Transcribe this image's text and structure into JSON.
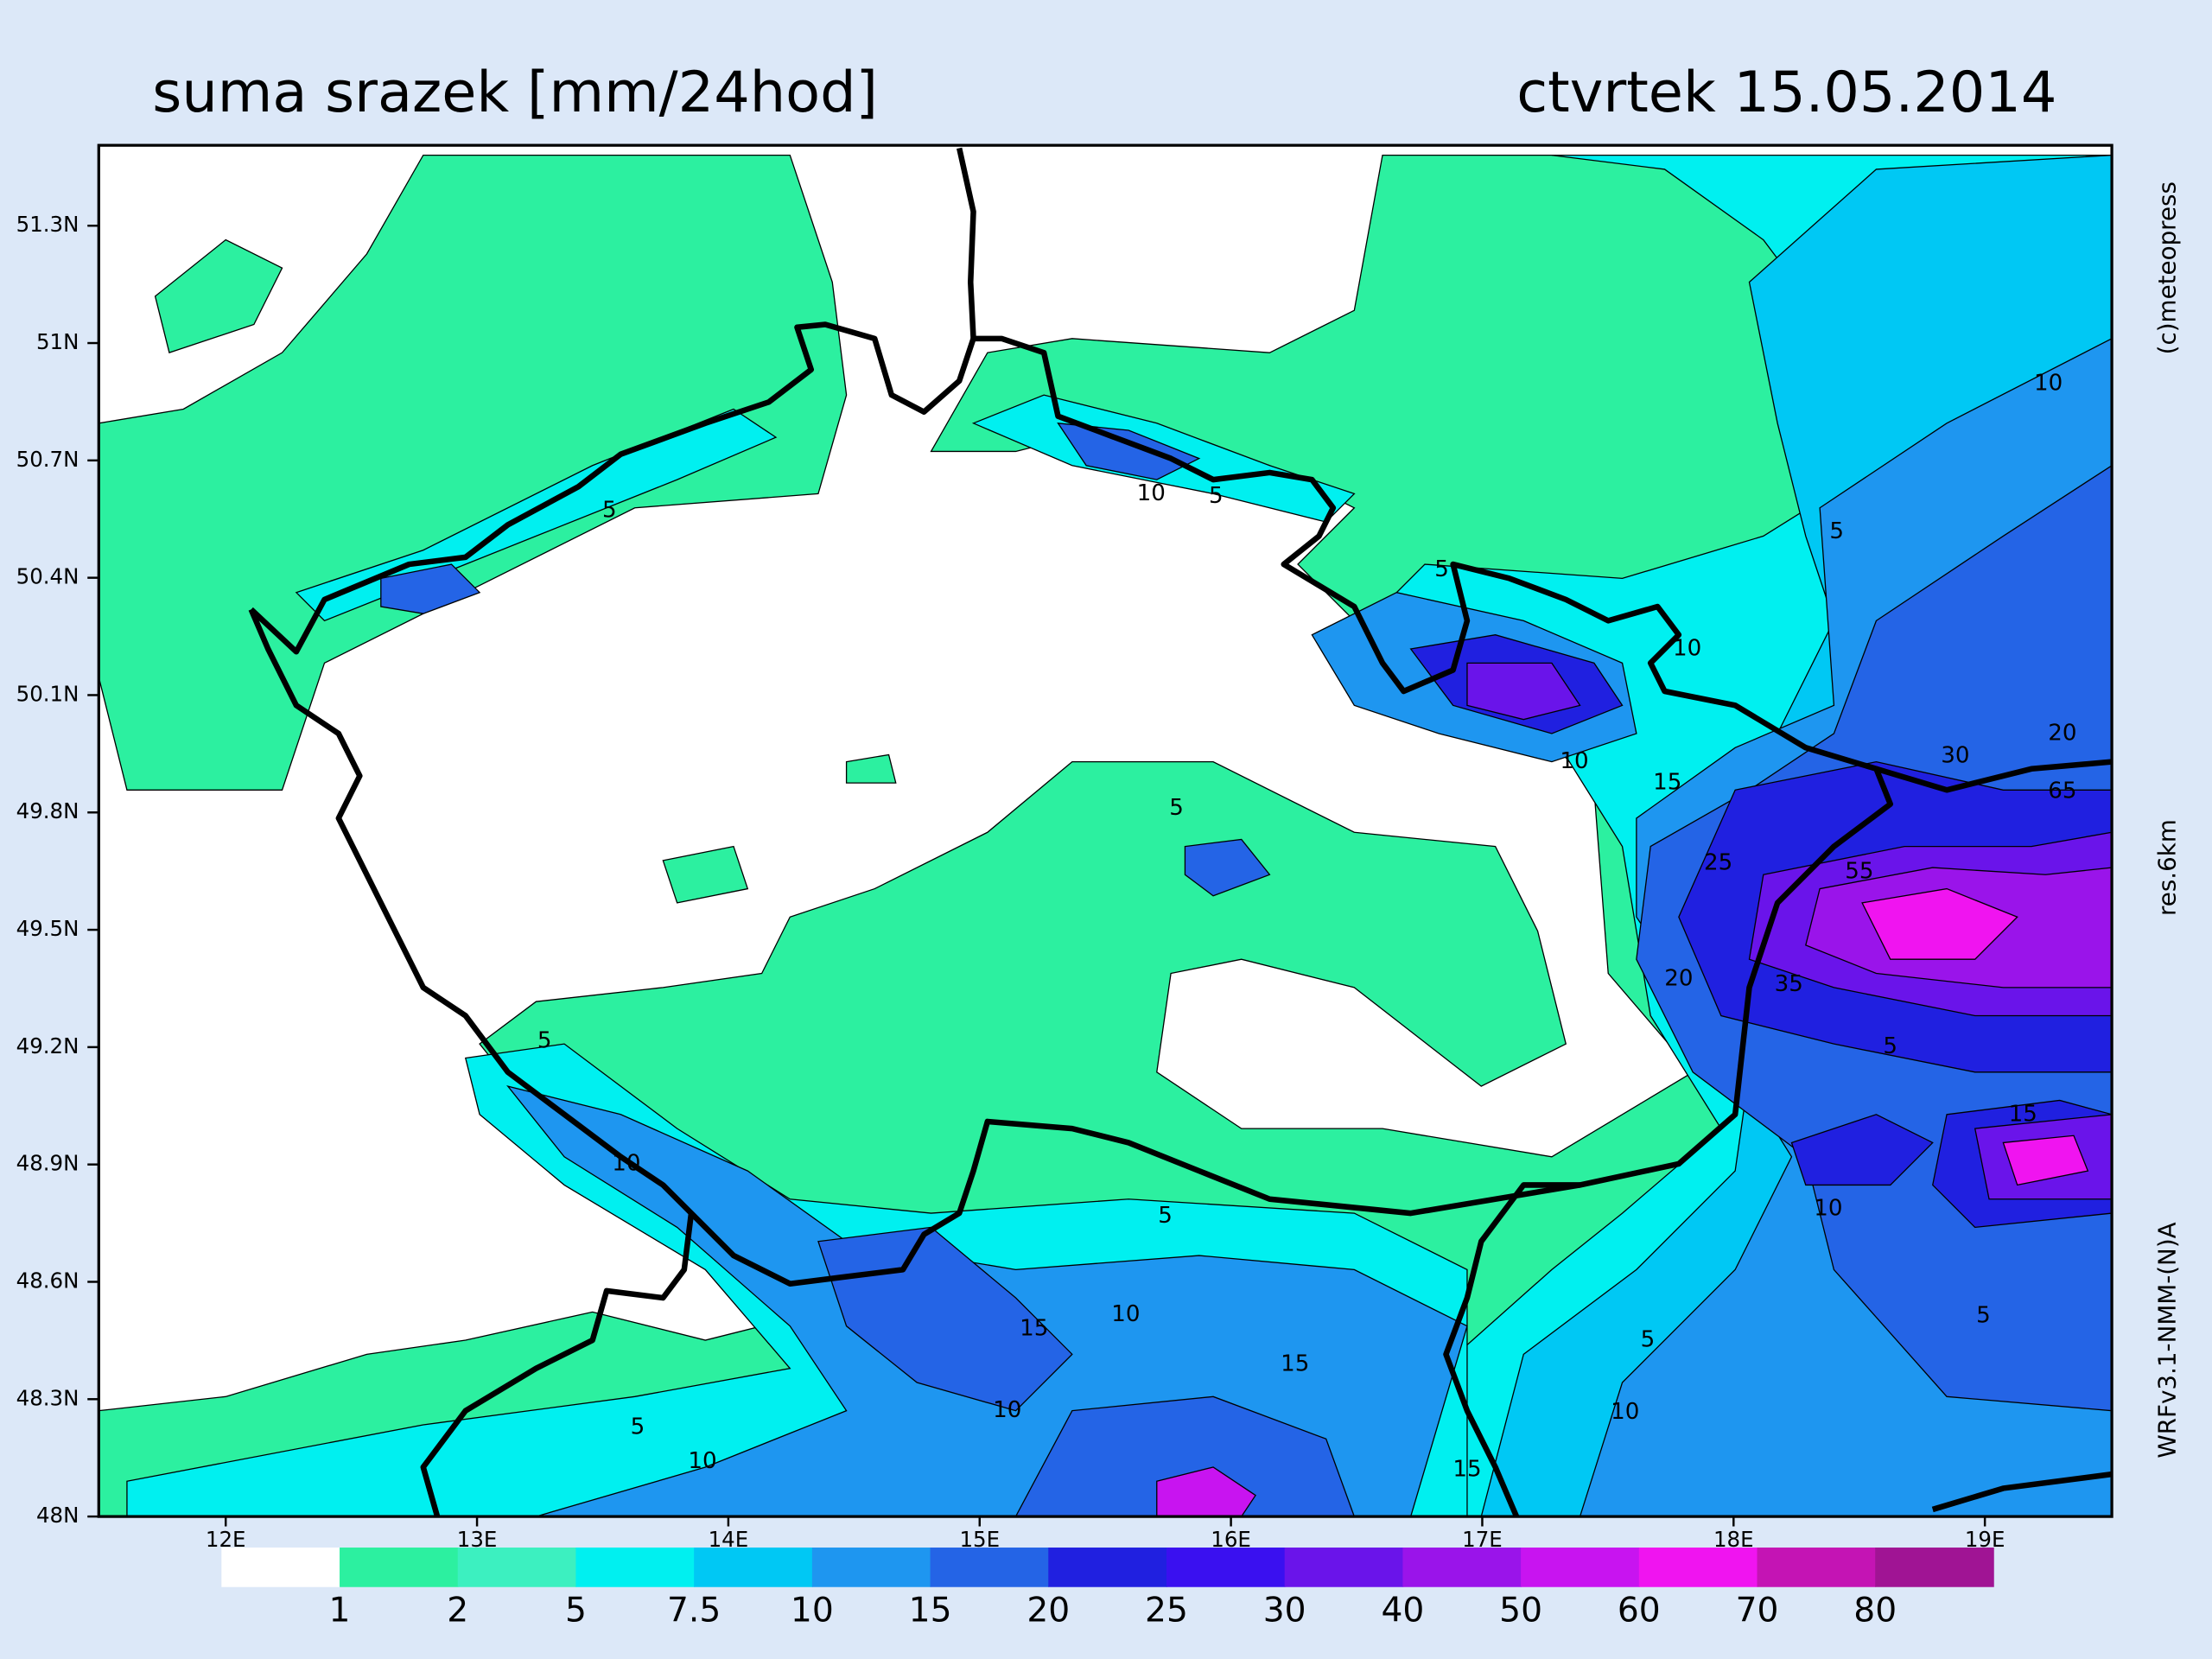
{
  "header": {
    "title": "suma srazek [mm/24hod]",
    "date": "ctvrtek 15.05.2014"
  },
  "map": {
    "lat_labels": [
      "51.3N",
      "51N",
      "50.7N",
      "50.4N",
      "50.1N",
      "49.8N",
      "49.5N",
      "49.2N",
      "48.9N",
      "48.6N",
      "48.3N",
      "48N"
    ],
    "lon_labels": [
      "12E",
      "13E",
      "14E",
      "15E",
      "16E",
      "17E",
      "18E",
      "19E"
    ],
    "contour_labels": [
      "5",
      "10",
      "5",
      "5",
      "5",
      "10",
      "10",
      "20",
      "30",
      "15",
      "10",
      "25",
      "5",
      "5",
      "10",
      "5",
      "10",
      "15",
      "15",
      "10",
      "5",
      "10",
      "15",
      "10",
      "5",
      "5",
      "10",
      "15",
      "5",
      "20",
      "35",
      "55",
      "65"
    ],
    "credits": "(c)meteopress",
    "resolution": "res.6km",
    "model": "WRFv3.1-NMM-(N)A"
  },
  "legend": {
    "thresholds": [
      1,
      2,
      5,
      7.5,
      10,
      15,
      20,
      25,
      30,
      40,
      50,
      60,
      70,
      80
    ],
    "colors": [
      "#ffffff",
      "#2cf0a0",
      "#3cf0c0",
      "#00f0f0",
      "#00c8f4",
      "#1e96f0",
      "#2464e6",
      "#2020e0",
      "#3a10f0",
      "#6a14ea",
      "#9a14ea",
      "#c814f0",
      "#f014f0",
      "#c414b4",
      "#a01494"
    ]
  }
}
